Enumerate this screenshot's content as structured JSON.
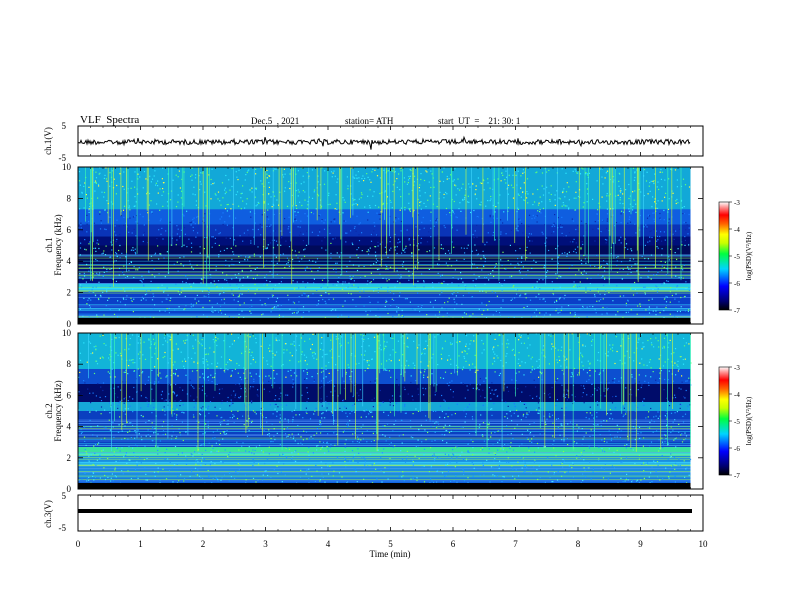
{
  "header": {
    "title": "VLF  Spectra",
    "date": "Dec.5  , 2021",
    "station": "station= ATH",
    "start": "start  UT  =    21: 30: 1"
  },
  "chart_data": [
    {
      "type": "line",
      "panel": "ch1-waveform",
      "ylabel": "ch.1(V)",
      "yticks": [
        "5",
        "-5"
      ],
      "ylim": [
        -5,
        5
      ],
      "xlim": [
        0,
        10
      ],
      "description_level": 0
    },
    {
      "type": "heatmap",
      "panel": "ch1-spectrogram",
      "ylabel": "Frequency  (kHz)",
      "channel_label": "ch.1",
      "yticks": [
        "0",
        "2",
        "4",
        "6",
        "8",
        "10"
      ],
      "ylim": [
        0,
        10
      ],
      "xlim": [
        0,
        10
      ],
      "colorbar": {
        "label": "log(PSD)(V²/Hz)",
        "ticks": [
          "-3",
          "-4",
          "-5",
          "-6",
          "-7"
        ],
        "range": [
          -7,
          -3
        ]
      }
    },
    {
      "type": "heatmap",
      "panel": "ch2-spectrogram",
      "ylabel": "Frequency  (kHz)",
      "channel_label": "ch.2",
      "yticks": [
        "0",
        "2",
        "4",
        "6",
        "8",
        "10"
      ],
      "ylim": [
        0,
        10
      ],
      "xlim": [
        0,
        10
      ],
      "colorbar": {
        "label": "log(PSD)(V²/Hz)",
        "ticks": [
          "-3",
          "-4",
          "-5",
          "-6",
          "-7"
        ],
        "range": [
          -7,
          -3
        ]
      }
    },
    {
      "type": "line",
      "panel": "ch3-waveform",
      "ylabel": "ch.3(V)",
      "yticks": [
        "5",
        "-5"
      ],
      "ylim": [
        -5,
        5
      ],
      "xlim": [
        0,
        10
      ],
      "level": 0
    }
  ],
  "x_axis": {
    "label": "Time  (min)",
    "ticks": [
      "0",
      "1",
      "2",
      "3",
      "4",
      "5",
      "6",
      "7",
      "8",
      "9",
      "10"
    ],
    "range": [
      0,
      10
    ],
    "data_end": 9.8
  },
  "colors": {
    "bg_dark": "#000e73",
    "bg_mid": "#1348d8",
    "bg_light": "#12b4d8",
    "line": "#000000"
  }
}
